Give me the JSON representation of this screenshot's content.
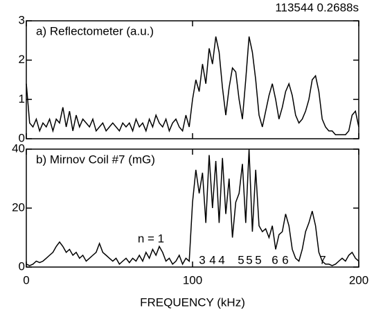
{
  "chart_data": [
    {
      "type": "line",
      "subtitle": "113544  0.2688s",
      "title": "a) Reflectometer (a.u.)",
      "color": "#000000",
      "x": [
        0,
        2,
        4,
        6,
        8,
        10,
        12,
        14,
        16,
        18,
        20,
        22,
        24,
        26,
        28,
        30,
        32,
        34,
        36,
        38,
        40,
        42,
        44,
        46,
        48,
        50,
        52,
        54,
        56,
        58,
        60,
        62,
        64,
        66,
        68,
        70,
        72,
        74,
        76,
        78,
        80,
        82,
        84,
        86,
        88,
        90,
        92,
        94,
        96,
        98,
        100,
        102,
        104,
        106,
        108,
        110,
        112,
        114,
        116,
        118,
        120,
        122,
        124,
        126,
        128,
        130,
        132,
        134,
        136,
        138,
        140,
        142,
        144,
        146,
        148,
        150,
        152,
        154,
        156,
        158,
        160,
        162,
        164,
        166,
        168,
        170,
        172,
        174,
        176,
        178,
        180,
        182,
        184,
        186,
        188,
        190,
        192,
        194,
        196,
        198,
        200
      ],
      "values": [
        1.4,
        0.4,
        0.3,
        0.5,
        0.2,
        0.4,
        0.3,
        0.5,
        0.2,
        0.5,
        0.4,
        0.8,
        0.3,
        0.7,
        0.2,
        0.6,
        0.3,
        0.5,
        0.4,
        0.3,
        0.5,
        0.2,
        0.3,
        0.4,
        0.2,
        0.3,
        0.4,
        0.3,
        0.2,
        0.4,
        0.3,
        0.4,
        0.2,
        0.5,
        0.3,
        0.4,
        0.2,
        0.5,
        0.3,
        0.6,
        0.4,
        0.3,
        0.5,
        0.2,
        0.4,
        0.5,
        0.3,
        0.2,
        0.6,
        0.3,
        1.0,
        1.5,
        1.2,
        1.9,
        1.4,
        2.3,
        1.9,
        2.6,
        2.2,
        1.3,
        0.6,
        1.3,
        1.8,
        1.7,
        1.0,
        0.5,
        1.5,
        2.6,
        2.2,
        1.5,
        0.6,
        0.3,
        0.7,
        1.1,
        1.4,
        1.0,
        0.5,
        0.8,
        1.2,
        1.4,
        1.1,
        0.6,
        0.4,
        0.5,
        0.7,
        1.0,
        1.5,
        1.6,
        1.2,
        0.5,
        0.3,
        0.2,
        0.2,
        0.1,
        0.1,
        0.1,
        0.1,
        0.2,
        0.6,
        0.7,
        0.3
      ],
      "xlim": [
        0,
        200
      ],
      "xticks": [
        0,
        100,
        200
      ],
      "ylim": [
        0,
        3
      ],
      "yticks": [
        0,
        1,
        2,
        3
      ]
    },
    {
      "type": "line",
      "title": "b) Mirnov Coil #7 (mG)",
      "xlabel": "FREQUENCY (kHz)",
      "color": "#000000",
      "x": [
        0,
        2,
        4,
        6,
        8,
        10,
        12,
        14,
        16,
        18,
        20,
        22,
        24,
        26,
        28,
        30,
        32,
        34,
        36,
        38,
        40,
        42,
        44,
        46,
        48,
        50,
        52,
        54,
        56,
        58,
        60,
        62,
        64,
        66,
        68,
        70,
        72,
        74,
        76,
        78,
        80,
        82,
        84,
        86,
        88,
        90,
        92,
        94,
        96,
        98,
        100,
        102,
        104,
        106,
        108,
        110,
        112,
        114,
        116,
        118,
        120,
        122,
        124,
        126,
        128,
        130,
        132,
        134,
        136,
        138,
        140,
        142,
        144,
        146,
        148,
        150,
        152,
        154,
        156,
        158,
        160,
        162,
        164,
        166,
        168,
        170,
        172,
        174,
        176,
        178,
        180,
        182,
        184,
        186,
        188,
        190,
        192,
        194,
        196,
        198,
        200
      ],
      "values": [
        1,
        0.5,
        1,
        2,
        1.5,
        2,
        3,
        4,
        5,
        7,
        8.5,
        7,
        5,
        6,
        4,
        5,
        3,
        4,
        2,
        3,
        4,
        5,
        8,
        5,
        4,
        3,
        2,
        3,
        1,
        2,
        3,
        1.5,
        3,
        2,
        4,
        2,
        5,
        3,
        6,
        4,
        7,
        5,
        2,
        3,
        1,
        2,
        4,
        1,
        3,
        2,
        22,
        33,
        25,
        32,
        15,
        38,
        20,
        36,
        15,
        37,
        18,
        30,
        10,
        22,
        25,
        35,
        15,
        40,
        12,
        33,
        14,
        12,
        13,
        10,
        14,
        6,
        11,
        12,
        18,
        14,
        6,
        3,
        2,
        6,
        12,
        15,
        19,
        14,
        5,
        2,
        1,
        1,
        0.5,
        1,
        2,
        3,
        2,
        4,
        5,
        3,
        2
      ],
      "xlim": [
        0,
        200
      ],
      "xticks": [
        0,
        100,
        200
      ],
      "ylim": [
        0,
        40
      ],
      "yticks": [
        0,
        20,
        40
      ],
      "annotations": [
        "n = 1",
        "3",
        "4",
        "4",
        "5",
        "5",
        "5",
        "6",
        "6",
        "7"
      ]
    }
  ]
}
